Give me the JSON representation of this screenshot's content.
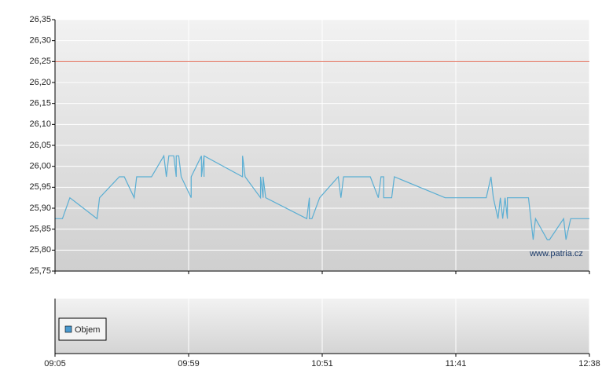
{
  "chart_data": {
    "type": "line",
    "color": "#5aaed3",
    "x": [
      "09:05",
      "09:08",
      "09:11",
      "09:22",
      "09:23",
      "09:31",
      "09:33",
      "09:37",
      "09:38",
      "09:44",
      "09:49",
      "09:50",
      "09:51",
      "09:53",
      "09:54",
      "09:54",
      "09:55",
      "09:56",
      "10:00",
      "10:00",
      "10:04",
      "10:04",
      "10:05",
      "10:05",
      "10:05",
      "10:20",
      "10:20",
      "10:21",
      "10:27",
      "10:27",
      "10:28",
      "10:28",
      "10:29",
      "10:45",
      "10:46",
      "10:46",
      "10:47",
      "10:50",
      "10:57",
      "10:58",
      "10:59",
      "11:09",
      "11:12",
      "11:13",
      "11:14",
      "11:14",
      "11:17",
      "11:18",
      "11:37",
      "11:54",
      "11:56",
      "11:57",
      "11:59",
      "12:00",
      "12:01",
      "12:02",
      "12:03",
      "12:03",
      "12:12",
      "12:13",
      "12:14",
      "12:15",
      "12:20",
      "12:21",
      "12:27",
      "12:28",
      "12:30",
      "12:38"
    ],
    "values": [
      25.875,
      25.875,
      25.925,
      25.875,
      25.925,
      25.975,
      25.975,
      25.925,
      25.975,
      25.975,
      26.025,
      25.975,
      26.025,
      26.025,
      25.975,
      26.025,
      26.025,
      25.975,
      25.925,
      25.975,
      26.025,
      25.975,
      26.025,
      25.975,
      26.025,
      25.975,
      26.025,
      25.975,
      25.925,
      25.975,
      25.925,
      25.975,
      25.925,
      25.875,
      25.925,
      25.875,
      25.875,
      25.925,
      25.975,
      25.925,
      25.975,
      25.975,
      25.925,
      25.975,
      25.975,
      25.925,
      25.925,
      25.975,
      25.925,
      25.925,
      25.975,
      25.925,
      25.875,
      25.925,
      25.875,
      25.925,
      25.875,
      25.925,
      25.925,
      25.875,
      25.825,
      25.875,
      25.825,
      25.825,
      25.875,
      25.825,
      25.875,
      25.875
    ],
    "ylim": [
      25.75,
      26.35
    ],
    "yticks": [
      {
        "value": 25.75,
        "label": "25,75"
      },
      {
        "value": 25.8,
        "label": "25,80"
      },
      {
        "value": 25.85,
        "label": "25,85"
      },
      {
        "value": 25.9,
        "label": "25,90"
      },
      {
        "value": 25.95,
        "label": "25,95"
      },
      {
        "value": 26.0,
        "label": "26,00"
      },
      {
        "value": 26.05,
        "label": "26,05"
      },
      {
        "value": 26.1,
        "label": "26,10"
      },
      {
        "value": 26.15,
        "label": "26,15"
      },
      {
        "value": 26.2,
        "label": "26,20"
      },
      {
        "value": 26.25,
        "label": "26,25"
      },
      {
        "value": 26.3,
        "label": "26,30"
      },
      {
        "value": 26.35,
        "label": "26,35"
      }
    ],
    "xticks": [
      "09:05",
      "09:59",
      "10:51",
      "11:41",
      "12:38"
    ],
    "reference_line": {
      "value": 26.25,
      "color": "#e2705c"
    },
    "volume_legend": {
      "name": "Objem",
      "color": "#4a9ad0"
    },
    "watermark": "www.patria.cz",
    "grid": true
  }
}
